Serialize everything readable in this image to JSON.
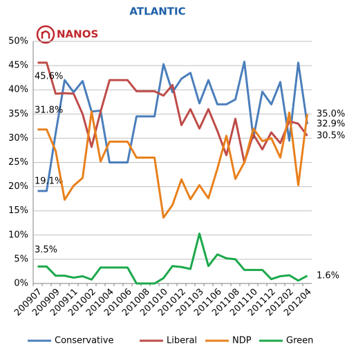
{
  "chart_data": {
    "type": "line",
    "title": "ATLANTIC",
    "logo_text": "NANOS",
    "categories": [
      "200907",
      null,
      "200909",
      null,
      "200911",
      null,
      "201002",
      null,
      "201004",
      null,
      "201006",
      null,
      "201008",
      null,
      "201010",
      null,
      "201012",
      null,
      "201103",
      null,
      "201106",
      null,
      "201108",
      null,
      "201110",
      null,
      "201112",
      null,
      "201202",
      null,
      "201204"
    ],
    "series": [
      {
        "name": "Conservative",
        "color": "#4a7ebb",
        "values": [
          19.1,
          19.1,
          31,
          42,
          39.5,
          41.8,
          35.5,
          35.7,
          25,
          25,
          25,
          34.5,
          34.5,
          34.5,
          45.3,
          39.5,
          42.3,
          43.5,
          37.2,
          42,
          37,
          37,
          38,
          45.8,
          30,
          39.6,
          37,
          41.6,
          29.5,
          45.6,
          32.9
        ],
        "value_labels": [
          "19.1%",
          null,
          null,
          null,
          null,
          null,
          null,
          null,
          null,
          null,
          null,
          null,
          null,
          null,
          null,
          null,
          null,
          null,
          null,
          null,
          null,
          null,
          null,
          null,
          null,
          null,
          null,
          null,
          null,
          null,
          "32.9%"
        ]
      },
      {
        "name": "Liberal",
        "color": "#be4b48",
        "values": [
          45.6,
          45.6,
          39.2,
          39.3,
          39.2,
          35,
          28.2,
          35.5,
          42,
          42,
          42,
          39.7,
          39.7,
          39.7,
          38.8,
          41,
          32.7,
          36,
          32,
          36,
          31.5,
          26.5,
          34,
          25,
          30.8,
          27.7,
          31.2,
          29,
          33.5,
          33,
          30.5
        ],
        "value_labels": [
          "45.6%",
          null,
          null,
          null,
          null,
          null,
          null,
          null,
          null,
          null,
          null,
          null,
          null,
          null,
          null,
          null,
          null,
          null,
          null,
          null,
          null,
          null,
          null,
          null,
          null,
          null,
          null,
          null,
          null,
          null,
          "30.5%"
        ]
      },
      {
        "name": "NDP",
        "color": "#e8801b",
        "values": [
          31.8,
          31.8,
          27.4,
          17.3,
          20.2,
          21.8,
          35.5,
          25.2,
          29.3,
          29.3,
          29.3,
          26,
          26,
          26,
          13.6,
          16.2,
          21.5,
          17.4,
          20.3,
          17.6,
          23.7,
          30.5,
          21.6,
          25,
          32,
          29.4,
          30,
          26,
          35.3,
          20.3,
          35.0
        ],
        "value_labels": [
          "31.8%",
          null,
          null,
          null,
          null,
          null,
          null,
          null,
          null,
          null,
          null,
          null,
          null,
          null,
          null,
          null,
          null,
          null,
          null,
          null,
          null,
          null,
          null,
          null,
          null,
          null,
          null,
          null,
          null,
          null,
          "35.0%"
        ]
      },
      {
        "name": "Green",
        "color": "#1aa84a",
        "values": [
          3.5,
          3.5,
          1.6,
          1.6,
          1.2,
          1.5,
          0.8,
          3.3,
          3.3,
          3.3,
          3.3,
          0,
          0,
          0,
          1.1,
          3.6,
          3.4,
          3,
          10.3,
          3.6,
          6,
          5.2,
          5,
          2.8,
          2.8,
          2.8,
          0.9,
          1.5,
          1.7,
          0.6,
          1.6
        ],
        "value_labels": [
          "3.5%",
          null,
          null,
          null,
          null,
          null,
          null,
          null,
          null,
          null,
          null,
          null,
          null,
          null,
          null,
          null,
          null,
          null,
          null,
          null,
          null,
          null,
          null,
          null,
          null,
          null,
          null,
          null,
          null,
          null,
          "1.6%"
        ]
      }
    ],
    "ylim": [
      0,
      50
    ],
    "yticks": [
      {
        "value": 0,
        "label": "0%"
      },
      {
        "value": 5,
        "label": "5%"
      },
      {
        "value": 10,
        "label": "10%"
      },
      {
        "value": 15,
        "label": "15%"
      },
      {
        "value": 20,
        "label": "20%"
      },
      {
        "value": 25,
        "label": "25%"
      },
      {
        "value": 30,
        "label": "30%"
      },
      {
        "value": 35,
        "label": "35%"
      },
      {
        "value": 40,
        "label": "40%"
      },
      {
        "value": 45,
        "label": "45%"
      },
      {
        "value": 50,
        "label": "50%"
      }
    ],
    "grid": true,
    "legend": "bottom"
  }
}
